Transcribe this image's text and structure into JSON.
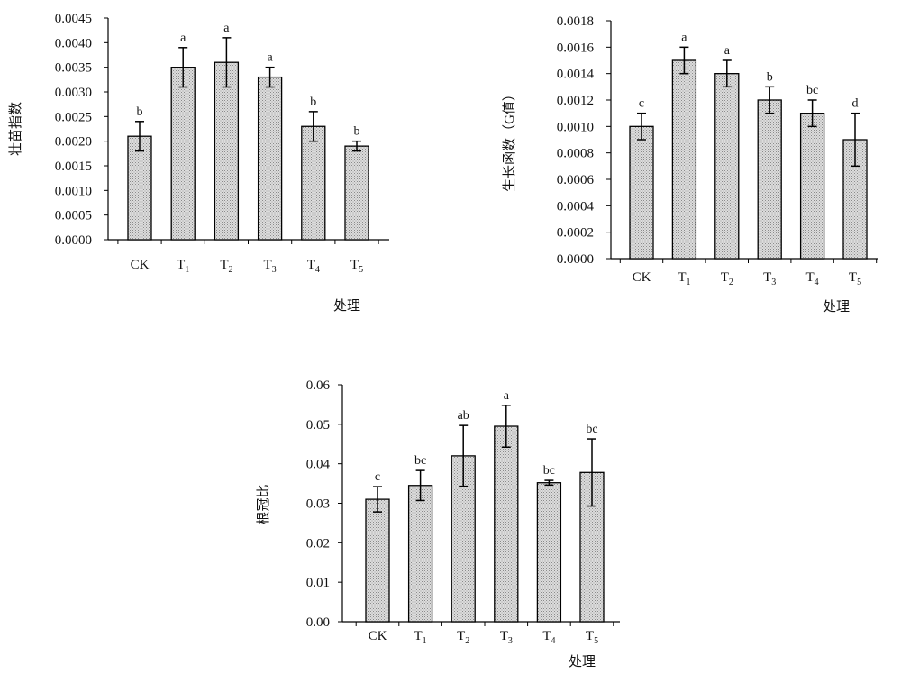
{
  "chart_data": [
    {
      "type": "bar",
      "categories": [
        "CK",
        "T1",
        "T2",
        "T3",
        "T4",
        "T5"
      ],
      "values": [
        0.0021,
        0.0035,
        0.0036,
        0.0033,
        0.0023,
        0.0019
      ],
      "errors": [
        0.0003,
        0.0004,
        0.0005,
        0.0002,
        0.0003,
        0.0001
      ],
      "significance": [
        "b",
        "a",
        "a",
        "a",
        "b",
        "b"
      ],
      "ylim": [
        0,
        0.0045
      ],
      "yticks": [
        "0.0000",
        "0.0005",
        "0.0010",
        "0.0015",
        "0.0020",
        "0.0025",
        "0.0030",
        "0.0035",
        "0.0040",
        "0.0045"
      ],
      "xlabel": "处理",
      "ylabel": "壮苗指数",
      "grid": false,
      "bar_color": "#d3d3d3"
    },
    {
      "type": "bar",
      "categories": [
        "CK",
        "T1",
        "T2",
        "T3",
        "T4",
        "T5"
      ],
      "values": [
        0.001,
        0.0015,
        0.0014,
        0.0012,
        0.0011,
        0.0009
      ],
      "errors": [
        0.0001,
        0.0001,
        0.0001,
        0.0001,
        0.0001,
        0.0002
      ],
      "significance": [
        "c",
        "a",
        "a",
        "b",
        "bc",
        "d"
      ],
      "ylim": [
        0,
        0.0018
      ],
      "yticks": [
        "0.0000",
        "0.0002",
        "0.0004",
        "0.0006",
        "0.0008",
        "0.0010",
        "0.0012",
        "0.0014",
        "0.0016",
        "0.0018"
      ],
      "xlabel": "处理",
      "ylabel": "生长函数（G值）",
      "grid": false,
      "bar_color": "#d3d3d3"
    },
    {
      "type": "bar",
      "categories": [
        "CK",
        "T1",
        "T2",
        "T3",
        "T4",
        "T5"
      ],
      "values": [
        0.031,
        0.0345,
        0.042,
        0.0495,
        0.0352,
        0.0378
      ],
      "errors": [
        0.0032,
        0.0038,
        0.0077,
        0.0053,
        0.0006,
        0.0085
      ],
      "significance": [
        "c",
        "bc",
        "ab",
        "a",
        "bc",
        "bc"
      ],
      "ylim": [
        0,
        0.06
      ],
      "yticks": [
        "0.00",
        "0.01",
        "0.02",
        "0.03",
        "0.04",
        "0.05",
        "0.06"
      ],
      "xlabel": "处理",
      "ylabel": "根冠比",
      "grid": false,
      "bar_color": "#d3d3d3"
    }
  ]
}
